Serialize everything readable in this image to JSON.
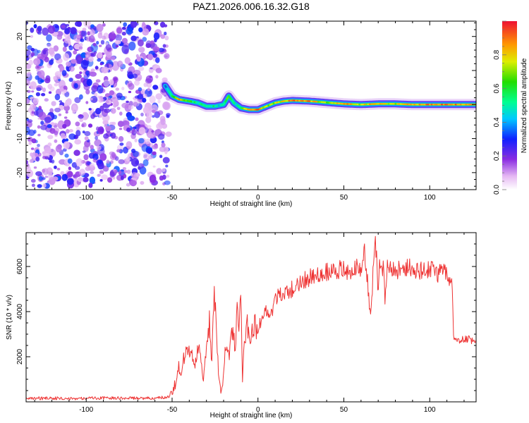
{
  "title": "PAZ1.2026.006.16.32.G18",
  "chart_data": [
    {
      "type": "heatmap",
      "name": "spectrogram",
      "xlabel": "Height of straight line (km)",
      "ylabel": "Frequency (Hz)",
      "xlim": [
        -135,
        127
      ],
      "ylim": [
        -25,
        24.5
      ],
      "xticks": [
        -100,
        -50,
        0,
        50,
        100
      ],
      "yticks": [
        -20,
        -10,
        0,
        10,
        20
      ],
      "xtick_labels": [
        "-100",
        "-50",
        "0",
        "50",
        "100"
      ],
      "ytick_labels": [
        "-20",
        "-10",
        "0",
        "10",
        "20"
      ],
      "noise_region_x": [
        -135,
        -52
      ],
      "noise_region_y": [
        -24,
        24
      ],
      "ridge": {
        "x": [
          -54,
          -50,
          -46,
          -40,
          -35,
          -30,
          -25,
          -20,
          -17,
          -14,
          -10,
          -5,
          0,
          5,
          10,
          15,
          20,
          30,
          40,
          50,
          60,
          70,
          80,
          90,
          100,
          110,
          120,
          127
        ],
        "freq": [
          5.5,
          2.5,
          1.5,
          1.0,
          0.5,
          -0.5,
          -0.5,
          0.0,
          2.5,
          0.5,
          -1.0,
          -1.5,
          -1.5,
          -0.5,
          0.5,
          1.0,
          1.2,
          1.0,
          0.6,
          0.2,
          0.0,
          0.2,
          0.2,
          0.0,
          0.0,
          0.0,
          0.0,
          0.0
        ],
        "amplitude": [
          0.35,
          0.55,
          0.85,
          0.6,
          0.5,
          0.55,
          0.5,
          0.45,
          0.7,
          0.45,
          0.55,
          0.85,
          0.9,
          0.7,
          0.75,
          0.8,
          0.9,
          0.85,
          0.7,
          0.9,
          0.75,
          0.85,
          0.75,
          0.8,
          0.9,
          0.9,
          0.85,
          0.8
        ]
      },
      "colorbar": {
        "label": "Normalized spectral amplitude",
        "range": [
          0,
          1
        ],
        "ticks": [
          0.0,
          0.2,
          0.4,
          0.6,
          0.8
        ],
        "tick_labels": [
          "0.0",
          "0.2",
          "0.4",
          "0.6",
          "0.8"
        ]
      }
    },
    {
      "type": "line",
      "name": "snr",
      "xlabel": "Height of straight line (km)",
      "ylabel": "SNR (10 * v/v)",
      "xlim": [
        -135,
        127
      ],
      "ylim": [
        0,
        7500
      ],
      "xticks": [
        -100,
        -50,
        0,
        50,
        100
      ],
      "yticks": [
        2000,
        4000,
        6000
      ],
      "xtick_labels": [
        "-100",
        "-50",
        "0",
        "50",
        "100"
      ],
      "ytick_labels": [
        "2000",
        "4000",
        "6000"
      ],
      "color": "#ee3333",
      "series": [
        {
          "name": "SNR",
          "x": [
            -135,
            -120,
            -105,
            -90,
            -75,
            -60,
            -52,
            -48,
            -46,
            -45,
            -43,
            -40,
            -37,
            -34,
            -32,
            -30,
            -28,
            -27,
            -26,
            -25,
            -23,
            -21,
            -20,
            -19,
            -17,
            -15,
            -13,
            -12,
            -11,
            -10,
            -9,
            -8,
            -6,
            -4,
            -2,
            0,
            2,
            5,
            8,
            10,
            15,
            20,
            25,
            30,
            35,
            40,
            45,
            50,
            55,
            60,
            62,
            64,
            65,
            66,
            67,
            68,
            69,
            70,
            71,
            72,
            73,
            74,
            75,
            80,
            85,
            90,
            95,
            100,
            105,
            108,
            110,
            111,
            112,
            113,
            114,
            115,
            118,
            122,
            127
          ],
          "values": [
            150,
            160,
            150,
            170,
            160,
            170,
            220,
            800,
            1600,
            1200,
            2000,
            2400,
            1600,
            2800,
            800,
            2500,
            3600,
            1300,
            4500,
            4600,
            1200,
            300,
            1600,
            2600,
            2000,
            3200,
            2400,
            4200,
            2800,
            4900,
            700,
            3000,
            3400,
            3000,
            3500,
            3300,
            3600,
            4100,
            3900,
            4600,
            4800,
            5000,
            5300,
            5500,
            5600,
            5800,
            5900,
            5800,
            5900,
            6000,
            6800,
            5100,
            4200,
            3900,
            5800,
            7200,
            6600,
            4800,
            6400,
            5700,
            6200,
            4600,
            6000,
            5800,
            6000,
            5900,
            5800,
            5900,
            5600,
            6000,
            5700,
            5300,
            5100,
            5400,
            2700,
            2900,
            2700,
            2800,
            2600
          ]
        }
      ]
    }
  ]
}
